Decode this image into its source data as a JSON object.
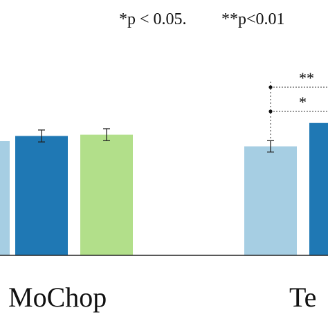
{
  "chart_data": {
    "type": "bar",
    "title": "",
    "xlabel": "",
    "ylabel": "",
    "annotations": {
      "significance_note_1": "*p < 0.05.",
      "significance_note_2": "**p<0.01",
      "bracket_labels": [
        "**",
        "*"
      ]
    },
    "ylim": [
      0,
      1
    ],
    "grid": false,
    "legend": "none",
    "categories": [
      "MoChop",
      "Tel"
    ],
    "category_labels": [
      "MoChop",
      "Te"
    ],
    "series": [
      {
        "color": "#a6cee3",
        "values": [
          0.44,
          0.42
        ],
        "errors": [
          null,
          0.022
        ]
      },
      {
        "color": "#1f78b4",
        "values": [
          0.46,
          0.51
        ],
        "errors": [
          0.023,
          null
        ]
      },
      {
        "color": "#b2df8a",
        "values": [
          0.465,
          null
        ],
        "errors": [
          0.023,
          null
        ]
      }
    ]
  }
}
